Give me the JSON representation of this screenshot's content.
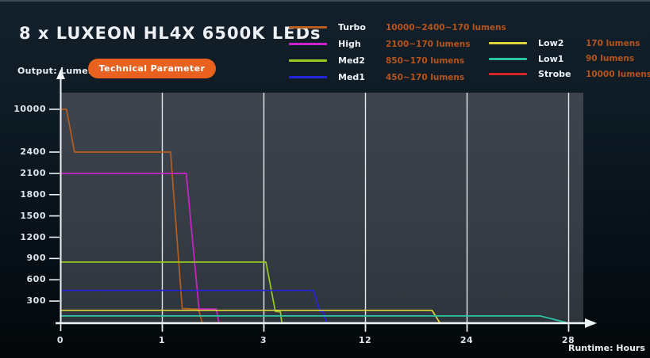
{
  "header": {
    "title": "8 x LUXEON HL4X 6500K LEDs",
    "output_label": "Output: Lumens",
    "button_label": "Technical Parameter"
  },
  "legend": {
    "value_color": "#b5541c",
    "position": "top-right, two columns",
    "columns": [
      {
        "items": [
          {
            "name": "Turbo",
            "color": "#b65e20",
            "value": "10000~2400~170 lumens"
          },
          {
            "name": "High",
            "color": "#cc22cc",
            "value": "2100~170 lumens"
          },
          {
            "name": "Med2",
            "color": "#99cc22",
            "value": "850~170 lumens"
          },
          {
            "name": "Med1",
            "color": "#2424dd",
            "value": "450~170 lumens"
          }
        ]
      },
      {
        "items": [
          {
            "name": "Low2",
            "color": "#e0d23a",
            "value": "170 lumens"
          },
          {
            "name": "Low1",
            "color": "#2cc4a2",
            "value": "90 lumens"
          },
          {
            "name": "Strobe",
            "color": "#d42424",
            "value": "10000 lumens"
          }
        ]
      }
    ]
  },
  "chart_data": {
    "type": "line",
    "title": "",
    "xlabel": "Runtime: Hours",
    "ylabel": "Output: Lumens",
    "x_ticks": [
      0,
      1,
      3,
      12,
      24,
      28
    ],
    "y_ticks": [
      300,
      600,
      900,
      1200,
      1500,
      1800,
      2100,
      2400,
      10000
    ],
    "x_axis_nonlinear": true,
    "y_axis_nonlinear": true,
    "grid": "vertical white gridlines at each x tick",
    "xlim": [
      0,
      28
    ],
    "ylim": [
      0,
      10000
    ],
    "series": [
      {
        "name": "Turbo",
        "color": "#b65e20",
        "points": [
          [
            0,
            10000
          ],
          [
            0.06,
            10000
          ],
          [
            0.14,
            2400
          ],
          [
            1.17,
            2400
          ],
          [
            1.4,
            195
          ],
          [
            1.72,
            185
          ],
          [
            1.79,
            0
          ]
        ]
      },
      {
        "name": "High",
        "color": "#cc22cc",
        "points": [
          [
            0,
            2100
          ],
          [
            1.48,
            2100
          ],
          [
            1.73,
            190
          ],
          [
            2.07,
            185
          ],
          [
            2.12,
            0
          ]
        ]
      },
      {
        "name": "Med2",
        "color": "#99cc22",
        "points": [
          [
            0,
            850
          ],
          [
            3.22,
            850
          ],
          [
            4.05,
            155
          ],
          [
            4.5,
            150
          ],
          [
            4.62,
            0
          ]
        ]
      },
      {
        "name": "Med1",
        "color": "#2424dd",
        "points": [
          [
            0,
            450
          ],
          [
            7.42,
            450
          ],
          [
            8.0,
            155
          ],
          [
            8.3,
            150
          ],
          [
            8.55,
            0
          ]
        ]
      },
      {
        "name": "Low2",
        "color": "#e0d23a",
        "points": [
          [
            0,
            170
          ],
          [
            19.9,
            170
          ],
          [
            20.8,
            0
          ]
        ]
      },
      {
        "name": "Low1",
        "color": "#2cc4a2",
        "points": [
          [
            0,
            90
          ],
          [
            26.9,
            90
          ],
          [
            27.9,
            0
          ]
        ]
      },
      {
        "name": "Strobe",
        "color": "#d42424",
        "points": []
      }
    ]
  }
}
